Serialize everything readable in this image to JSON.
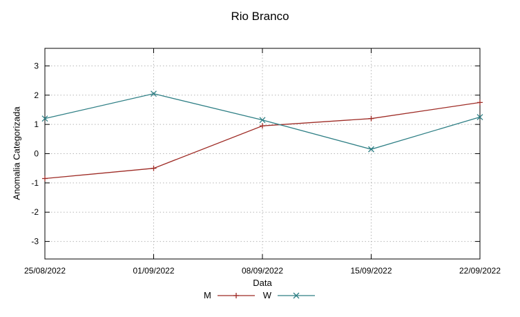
{
  "chart_data": {
    "type": "line",
    "title": "Rio Branco",
    "xlabel": "Data",
    "ylabel": "Anomalia Categorizada",
    "categories": [
      "25/08/2022",
      "01/09/2022",
      "08/09/2022",
      "15/09/2022",
      "22/09/2022"
    ],
    "series": [
      {
        "name": "M",
        "color": "#9e2b25",
        "marker": "plus",
        "values": [
          -0.85,
          -0.5,
          0.95,
          1.2,
          1.75
        ]
      },
      {
        "name": "W",
        "color": "#2e7f85",
        "marker": "cross",
        "values": [
          1.2,
          2.05,
          1.15,
          0.15,
          1.25
        ]
      }
    ],
    "yticks": [
      -3,
      -2,
      -1,
      0,
      1,
      2,
      3
    ],
    "ylim": [
      -3.6,
      3.6
    ],
    "grid": true,
    "legend_position": "bottom"
  }
}
